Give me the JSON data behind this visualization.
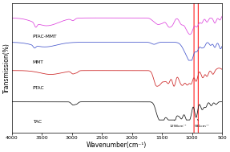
{
  "xlabel": "Wavenumber(cm⁻¹)",
  "ylabel": "Transmission(%)",
  "xlim": [
    4000,
    500
  ],
  "x_ticks": [
    4000,
    3500,
    3000,
    2500,
    2000,
    1500,
    1000,
    500
  ],
  "labels": [
    "PTAC-MMT",
    "MMT",
    "PTAC",
    "TAC"
  ],
  "colors": [
    "#dd44dd",
    "#4455cc",
    "#cc2222",
    "#111111"
  ],
  "offsets": [
    0.76,
    0.56,
    0.36,
    0.1
  ],
  "scale": 0.14
}
